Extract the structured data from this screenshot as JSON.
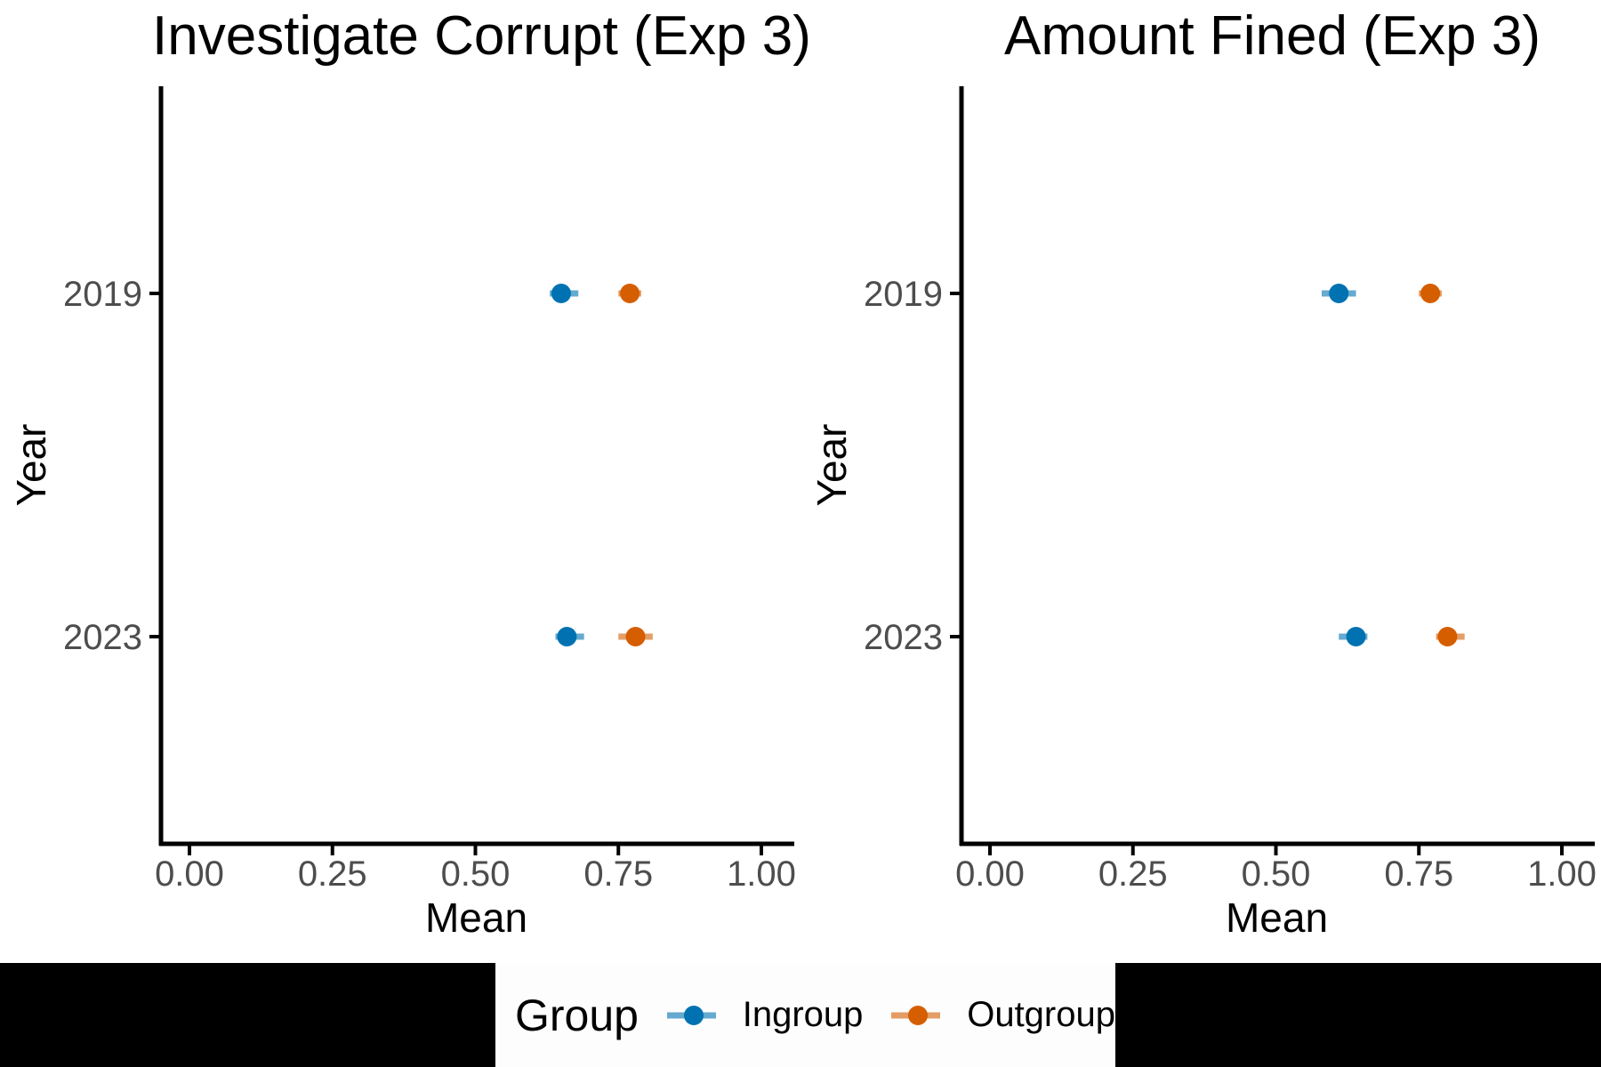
{
  "colors": {
    "ingroup": "#0072B2",
    "outgroup": "#D55E00",
    "axis_text": "#4D4D4D",
    "axis_line": "#000000",
    "redaction": "#000000",
    "legend_bg": "#FDFDFD"
  },
  "legend": {
    "title": "Group",
    "items": [
      {
        "label": "Ingroup",
        "color": "ingroup"
      },
      {
        "label": "Outgroup",
        "color": "outgroup"
      }
    ]
  },
  "chart_data": [
    {
      "type": "scatter",
      "subtype": "horizontal-pointrange",
      "title": "Investigate Corrupt (Exp 3)",
      "xlabel": "Mean",
      "ylabel": "Year",
      "xlim": [
        0,
        1
      ],
      "x_ticks": [
        "0.00",
        "0.25",
        "0.50",
        "0.75",
        "1.00"
      ],
      "x_tick_values": [
        0,
        0.25,
        0.5,
        0.75,
        1
      ],
      "categories": [
        "2019",
        "2023"
      ],
      "grid": false,
      "legend_position": "bottom",
      "series": [
        {
          "name": "Ingroup",
          "color": "ingroup",
          "means": [
            0.65,
            0.66
          ],
          "ci_low": [
            0.63,
            0.64
          ],
          "ci_high": [
            0.68,
            0.69
          ]
        },
        {
          "name": "Outgroup",
          "color": "outgroup",
          "means": [
            0.77,
            0.78
          ],
          "ci_low": [
            0.75,
            0.75
          ],
          "ci_high": [
            0.79,
            0.81
          ]
        }
      ]
    },
    {
      "type": "scatter",
      "subtype": "horizontal-pointrange",
      "title": "Amount Fined (Exp 3)",
      "xlabel": "Mean",
      "ylabel": "Year",
      "xlim": [
        0,
        1
      ],
      "x_ticks": [
        "0.00",
        "0.25",
        "0.50",
        "0.75",
        "1.00"
      ],
      "x_tick_values": [
        0,
        0.25,
        0.5,
        0.75,
        1
      ],
      "categories": [
        "2019",
        "2023"
      ],
      "grid": false,
      "legend_position": "bottom",
      "series": [
        {
          "name": "Ingroup",
          "color": "ingroup",
          "means": [
            0.61,
            0.64
          ],
          "ci_low": [
            0.58,
            0.61
          ],
          "ci_high": [
            0.64,
            0.66
          ]
        },
        {
          "name": "Outgroup",
          "color": "outgroup",
          "means": [
            0.77,
            0.8
          ],
          "ci_low": [
            0.75,
            0.78
          ],
          "ci_high": [
            0.79,
            0.83
          ]
        }
      ]
    }
  ]
}
